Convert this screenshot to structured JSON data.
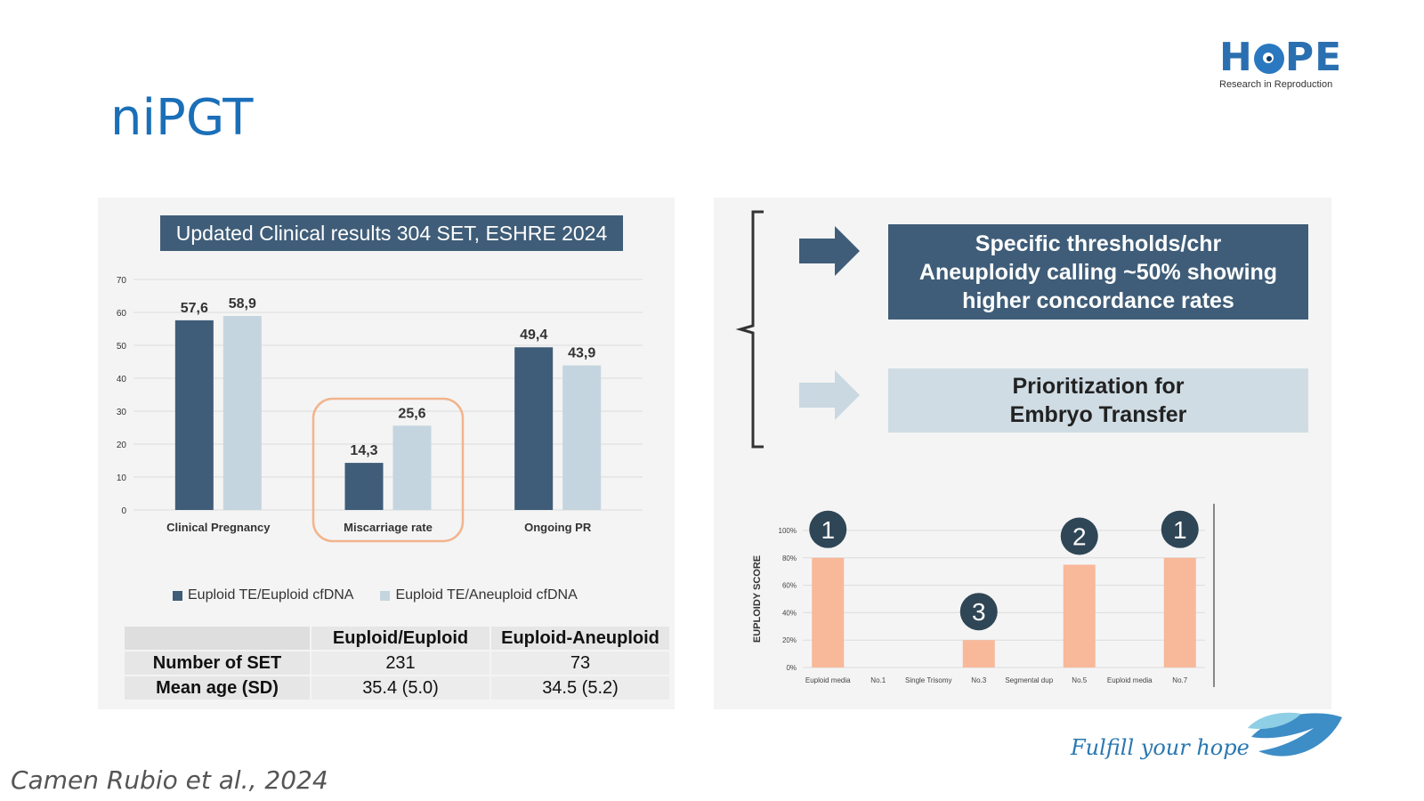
{
  "slide": {
    "title": "niPGT",
    "citation": "Camen Rubio et al., 2024",
    "footer_tagline": "Fulfill your hope",
    "logo": {
      "word_left": "H",
      "word_right": "PE",
      "subtitle": "Research in Reproduction"
    }
  },
  "left_panel": {
    "banner": "Updated Clinical results 304 SET, ESHRE 2024",
    "legend": [
      "Euploid TE/Euploid cfDNA",
      "Euploid TE/Aneuploid cfDNA"
    ],
    "table": {
      "headers": [
        "",
        "Euploid/Euploid",
        "Euploid-Aneuploid"
      ],
      "rows": [
        {
          "label": "Number of SET",
          "values": [
            "231",
            "73"
          ]
        },
        {
          "label": "Mean age (SD)",
          "values": [
            "35.4 (5.0)",
            "34.5 (5.2)"
          ]
        }
      ]
    }
  },
  "right_panel": {
    "box1_lines": [
      "Specific thresholds/chr",
      "Aneuploidy calling ~50% showing",
      "higher concordance rates"
    ],
    "box2_lines": [
      "Prioritization for",
      "Embryo Transfer"
    ]
  },
  "colors": {
    "dark": "#3f5d78",
    "light": "#c5d5df",
    "highlight": "#f2b48c",
    "bar_salmon": "#f8b89a",
    "title": "#1a6fb8"
  },
  "chart_data": [
    {
      "type": "bar",
      "categories": [
        "Clinical Pregnancy",
        "Miscarriage rate",
        "Ongoing PR"
      ],
      "series": [
        {
          "name": "Euploid TE/Euploid cfDNA",
          "values": [
            57.6,
            14.3,
            49.4
          ],
          "labels": [
            "57,6",
            "14,3",
            "49,4"
          ]
        },
        {
          "name": "Euploid TE/Aneuploid cfDNA",
          "values": [
            58.9,
            25.6,
            43.9
          ],
          "labels": [
            "58,9",
            "25,6",
            "43,9"
          ]
        }
      ],
      "yticks": [
        "0",
        "10",
        "20",
        "30",
        "40",
        "50",
        "60",
        "70"
      ],
      "ylim": [
        0,
        70
      ],
      "grid": true,
      "highlighted_category": "Miscarriage rate"
    },
    {
      "type": "bar",
      "categories": [
        "Euploid media",
        "No.1",
        "Single Trisomy",
        "No.3",
        "Segmental dup",
        "No.5",
        "Euploid media",
        "No.7"
      ],
      "values": [
        80,
        null,
        null,
        20,
        null,
        75,
        null,
        80
      ],
      "bar_categories": [
        "Euploid media",
        "Single Trisomy",
        "Segmental dup",
        "Euploid media"
      ],
      "bar_values": [
        80,
        20,
        75,
        80
      ],
      "ranks": [
        "1",
        "3",
        "2",
        "1"
      ],
      "ylabel": "EUPLOIDY SCORE",
      "yticks": [
        "0%",
        "20%",
        "40%",
        "60%",
        "80%",
        "100%"
      ],
      "ylim": [
        0,
        100
      ],
      "grid": true
    }
  ]
}
